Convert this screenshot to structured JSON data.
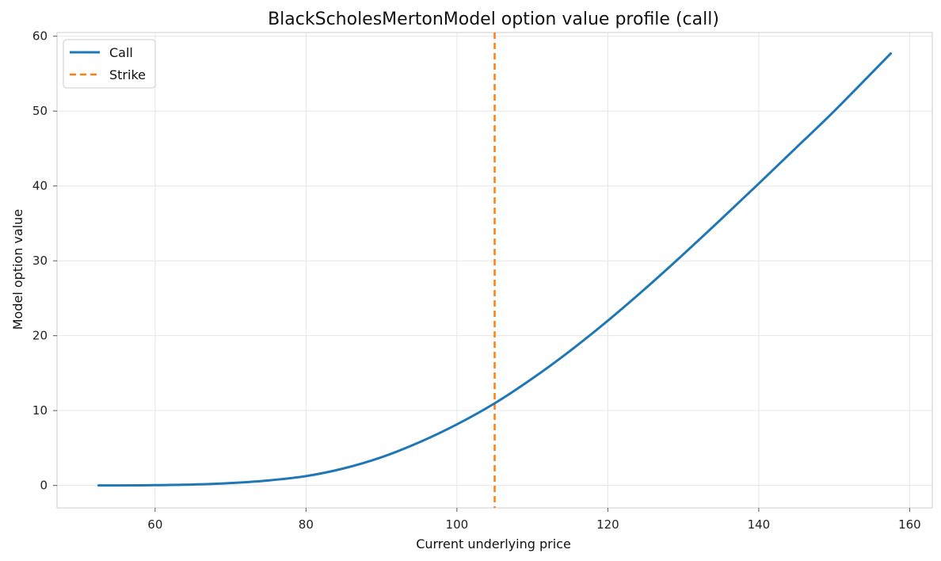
{
  "chart_data": {
    "type": "line",
    "title": "BlackScholesMertonModel option value profile (call)",
    "xlabel": "Current underlying price",
    "ylabel": "Model option value",
    "xlim": [
      47,
      163
    ],
    "ylim": [
      -3,
      60.5
    ],
    "xticks": [
      60,
      80,
      100,
      120,
      140,
      160
    ],
    "yticks": [
      0,
      10,
      20,
      30,
      40,
      50,
      60
    ],
    "grid": true,
    "legend_position": "top-left",
    "strike": 105,
    "series": [
      {
        "name": "Call",
        "color": "#1f77b4",
        "style": "solid",
        "x": [
          52.5,
          55,
          60,
          65,
          70,
          75,
          80,
          85,
          90,
          95,
          100,
          105,
          110,
          115,
          120,
          125,
          130,
          135,
          140,
          145,
          150,
          157.5
        ],
        "y": [
          0.0,
          0.0,
          0.04,
          0.12,
          0.32,
          0.67,
          1.25,
          2.28,
          3.77,
          5.76,
          8.16,
          10.97,
          14.29,
          17.98,
          22.01,
          26.33,
          30.87,
          35.55,
          40.32,
          45.15,
          50.0,
          57.7
        ]
      },
      {
        "name": "Strike",
        "color": "#ff7f0e",
        "style": "dashed"
      }
    ]
  }
}
